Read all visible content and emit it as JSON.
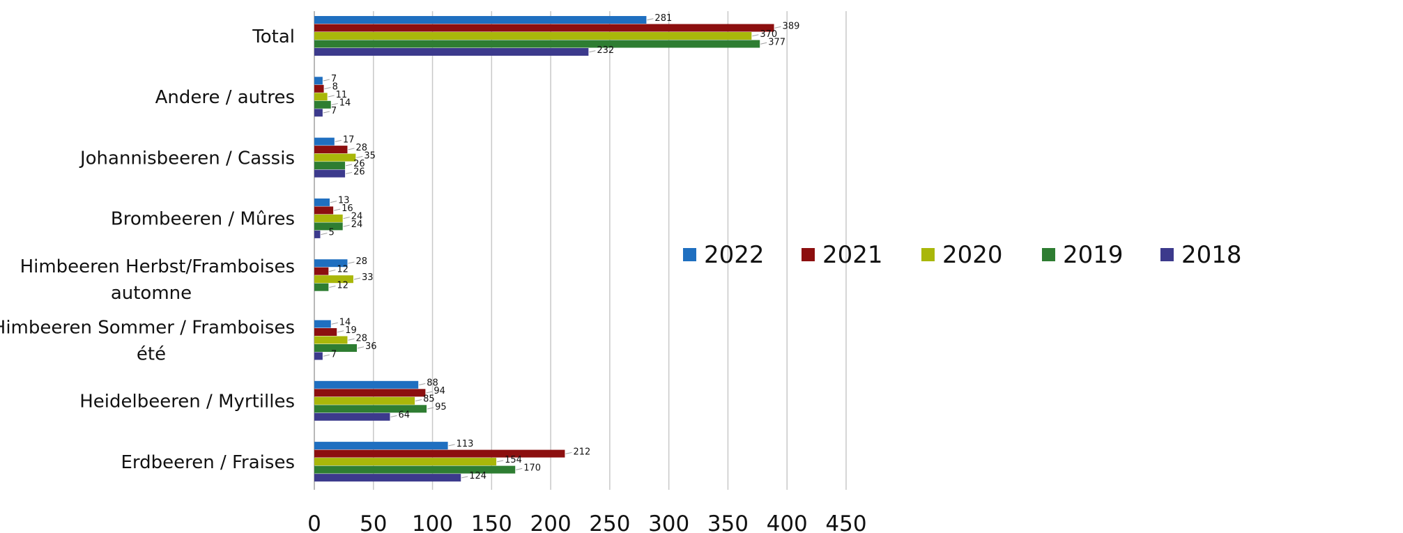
{
  "chart_data": {
    "type": "bar",
    "orientation": "horizontal",
    "title": "",
    "xlabel": "",
    "ylabel": "",
    "xlim": [
      0,
      450
    ],
    "xticks": [
      0,
      50,
      100,
      150,
      200,
      250,
      300,
      350,
      400,
      450
    ],
    "grid": true,
    "legend_position": "center-right",
    "categories": [
      [
        "Total"
      ],
      [
        "Andere / autres"
      ],
      [
        "Johannisbeeren / Cassis"
      ],
      [
        "Brombeeren / Mûres"
      ],
      [
        "Himbeeren Herbst/Framboises",
        "automne"
      ],
      [
        "Himbeeren Sommer / Framboises",
        "été"
      ],
      [
        "Heidelbeeren / Myrtilles"
      ],
      [
        "Erdbeeren / Fraises"
      ]
    ],
    "series": [
      {
        "name": "2022",
        "color": "#1f6fc0",
        "values": [
          281,
          7,
          17,
          13,
          28,
          14,
          88,
          113
        ]
      },
      {
        "name": "2021",
        "color": "#8c0f0f",
        "values": [
          389,
          8,
          28,
          16,
          12,
          19,
          94,
          212
        ]
      },
      {
        "name": "2020",
        "color": "#a9b70a",
        "values": [
          370,
          11,
          35,
          24,
          33,
          28,
          85,
          154
        ]
      },
      {
        "name": "2019",
        "color": "#2e7d32",
        "values": [
          377,
          14,
          26,
          24,
          12,
          36,
          95,
          170
        ]
      },
      {
        "name": "2018",
        "color": "#3c3a8c",
        "values": [
          232,
          7,
          26,
          5,
          null,
          7,
          64,
          124
        ]
      }
    ]
  }
}
